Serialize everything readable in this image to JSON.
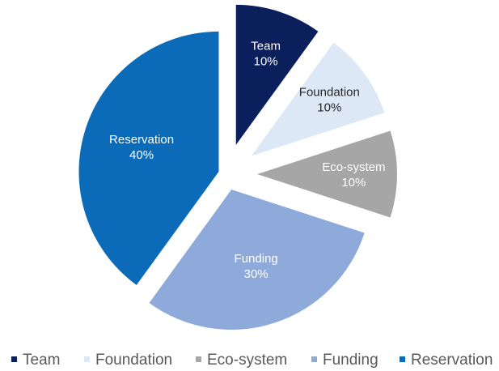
{
  "chart_data": {
    "type": "pie",
    "slices": [
      {
        "label": "Team",
        "value": 10,
        "value_label": "10%",
        "color": "#0b1f5c",
        "label_color": "#ffffff"
      },
      {
        "label": "Foundation",
        "value": 10,
        "value_label": "10%",
        "color": "#dde8f6",
        "label_color": "#262626"
      },
      {
        "label": "Eco-system",
        "value": 10,
        "value_label": "10%",
        "color": "#a6a6a6",
        "label_color": "#ffffff"
      },
      {
        "label": "Funding",
        "value": 30,
        "value_label": "30%",
        "color": "#8eaadb",
        "label_color": "#ffffff"
      },
      {
        "label": "Reservation",
        "value": 40,
        "value_label": "40%",
        "color": "#0b6bb8",
        "label_color": "#ffffff"
      }
    ],
    "legend": {
      "placement": "bottom",
      "entries": [
        "Team",
        "Foundation",
        "Eco-system",
        "Funding",
        "Reservation"
      ]
    },
    "exploded": true,
    "start_angle": "12 o'clock",
    "direction": "clockwise"
  }
}
